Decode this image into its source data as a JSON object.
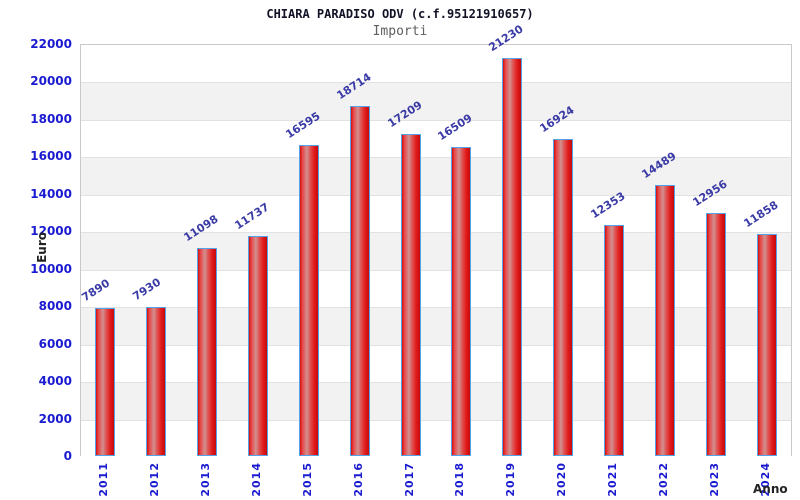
{
  "chart_data": {
    "type": "bar",
    "title": "CHIARA PARADISO ODV (c.f.95121910657)",
    "subtitle": "Importi",
    "xlabel": "Anno",
    "ylabel": "Euro",
    "categories": [
      "2011",
      "2012",
      "2013",
      "2014",
      "2015",
      "2016",
      "2017",
      "2018",
      "2019",
      "2020",
      "2021",
      "2022",
      "2023",
      "2024"
    ],
    "values": [
      7890,
      7930,
      11098,
      11737,
      16595,
      18714,
      17209,
      16509,
      21230,
      16924,
      12353,
      14489,
      12956,
      11858
    ],
    "value_labels": [
      "7890",
      "7930",
      "11098",
      "11737",
      "16595",
      "18714",
      "17209",
      "16509",
      "21230",
      "16924",
      "12353",
      "14489",
      "12956",
      "11858"
    ],
    "ytick_labels": [
      "0",
      "2000",
      "4000",
      "6000",
      "8000",
      "10000",
      "12000",
      "14000",
      "16000",
      "18000",
      "20000",
      "22000"
    ],
    "ylim": [
      0,
      22000
    ],
    "ytick_step": 2000,
    "grid": "alternating-horizontal-bands",
    "legend": "none",
    "colors": {
      "bar_fill_main": "#d31010",
      "bar_fill_highlight": "#d29090",
      "bar_border": "#54a3e8",
      "axis_tick_label": "#1a1ad0",
      "value_label": "#3a3aa6",
      "title": "#121226",
      "subtitle": "#5f5f5f",
      "band_gray": "#f2f2f2",
      "band_white": "#ffffff",
      "plot_border": "#c9c9c9",
      "axis_title": "#222222"
    }
  }
}
